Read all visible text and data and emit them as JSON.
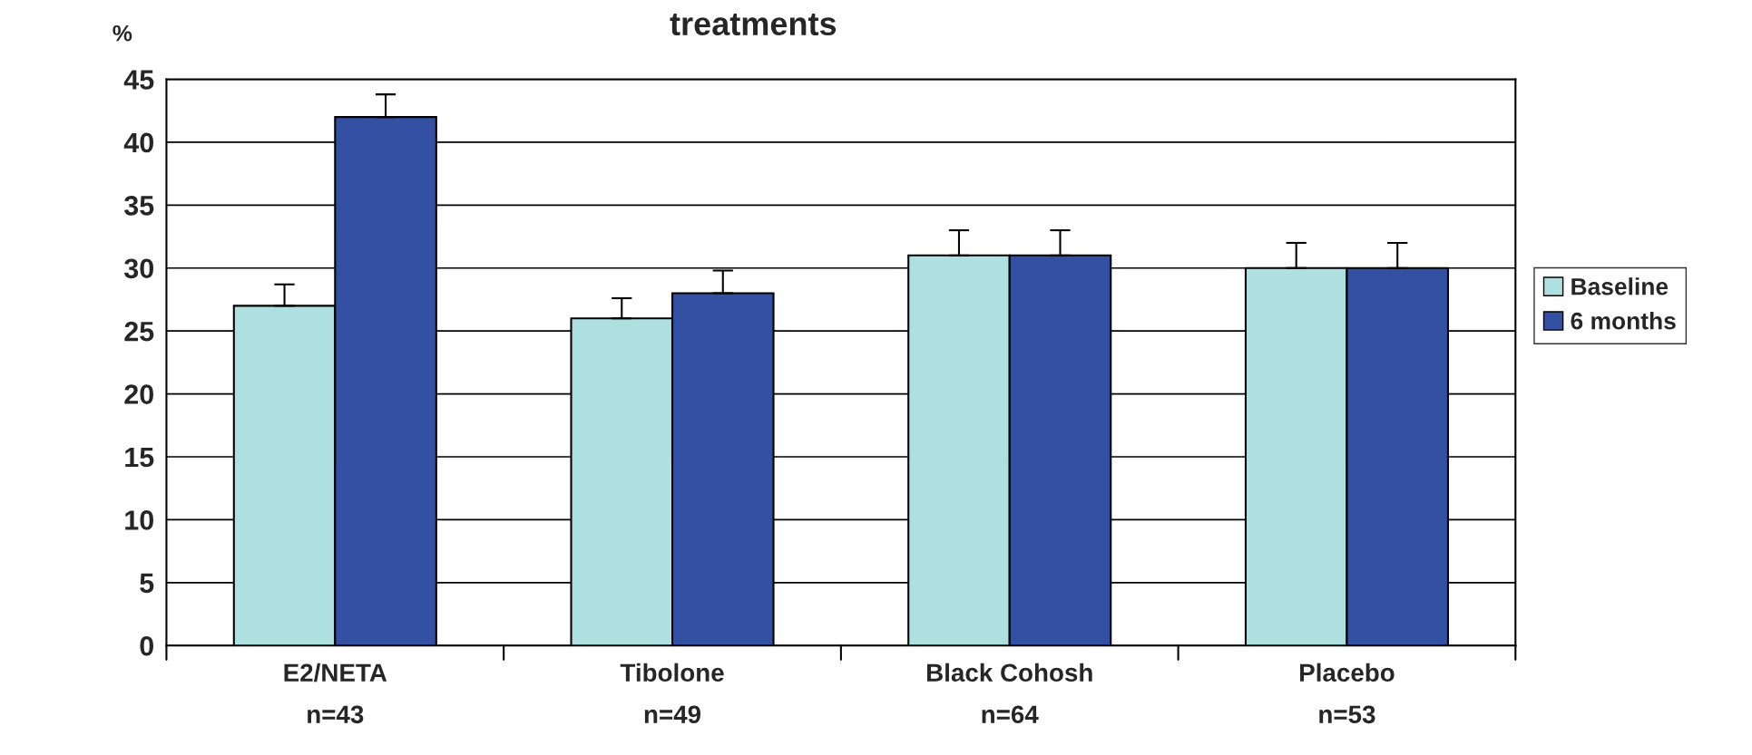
{
  "chart_data": {
    "type": "bar",
    "title": "treatments",
    "ylabel": "%",
    "categories": [
      "E2/NETA\nn=43",
      "Tibolone\nn=49",
      "Black Cohosh\nn=64",
      "Placebo\nn=53"
    ],
    "series": [
      {
        "name": "Baseline",
        "color": "#aee0e0",
        "values": [
          27,
          26,
          31,
          30
        ],
        "errors": [
          [
            27,
            28.7
          ],
          [
            26,
            27.6
          ],
          [
            31,
            33
          ],
          [
            30,
            32
          ]
        ]
      },
      {
        "name": "6 months",
        "color": "#3350a3",
        "values": [
          42,
          28,
          31,
          30
        ],
        "errors": [
          [
            42,
            43.8
          ],
          [
            28,
            29.8
          ],
          [
            31,
            33
          ],
          [
            30,
            32
          ]
        ]
      }
    ],
    "ylim": [
      0,
      45
    ],
    "yticks": [
      0,
      5,
      10,
      15,
      20,
      25,
      30,
      35,
      40,
      45
    ],
    "grid": "y",
    "legend": "right"
  }
}
